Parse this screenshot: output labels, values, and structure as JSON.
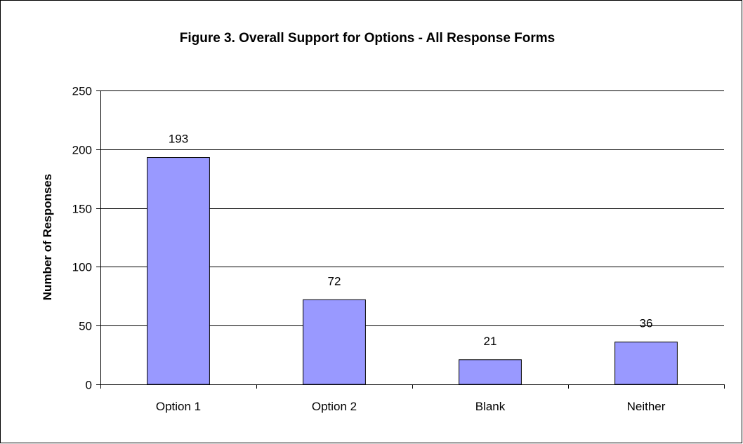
{
  "chart_data": {
    "type": "bar",
    "title": "Figure 3. Overall Support for Options - All Response Forms",
    "xlabel": "",
    "ylabel": "Number of Responses",
    "categories": [
      "Option 1",
      "Option 2",
      "Blank",
      "Neither"
    ],
    "values": [
      193,
      72,
      21,
      36
    ],
    "data_labels": [
      "193",
      "72",
      "21",
      "36"
    ],
    "ylim": [
      0,
      250
    ],
    "yticks": [
      0,
      50,
      100,
      150,
      200,
      250
    ],
    "grid": true,
    "legend": "none",
    "colors": {
      "bar_fill": "#9999ff",
      "bar_stroke": "#000000",
      "grid": "#000000",
      "background": "#ffffff"
    }
  }
}
